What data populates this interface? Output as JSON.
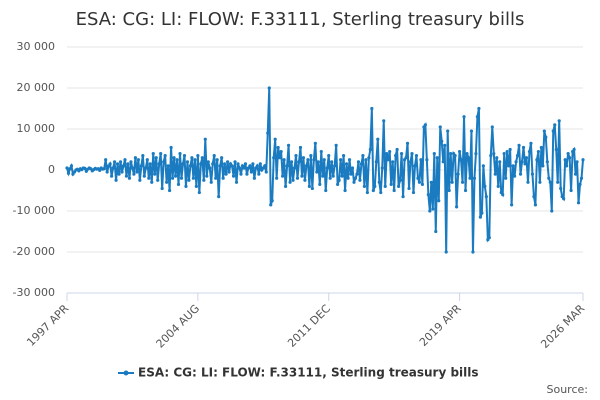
{
  "chart_data": {
    "type": "line",
    "title": "ESA: CG: LI: FLOW: F.33111, Sterling treasury bills",
    "source": "Source:",
    "categories": [
      "1997 APR",
      null,
      null,
      null,
      null,
      null,
      null,
      null,
      null,
      null,
      null,
      null,
      null,
      null,
      null,
      null,
      null,
      null,
      null,
      null,
      null,
      null,
      null,
      null,
      null,
      null,
      null,
      null,
      null,
      null,
      null,
      null,
      null,
      null,
      null,
      null,
      null,
      null,
      null,
      null,
      null,
      null,
      null,
      null,
      null,
      null,
      null,
      null,
      null,
      null,
      null,
      null,
      null,
      null,
      null,
      null,
      null,
      null,
      null,
      null,
      null,
      null,
      null,
      null,
      null,
      null,
      null,
      null,
      null,
      null,
      null,
      null,
      null,
      null,
      null,
      null,
      null,
      null,
      null,
      null,
      null,
      null,
      null,
      null,
      null,
      null,
      null,
      null,
      "2004 AUG",
      null,
      null,
      null,
      null,
      null,
      null,
      null,
      null,
      null,
      null,
      null,
      null,
      null,
      null,
      null,
      null,
      null,
      null,
      null,
      null,
      null,
      null,
      null,
      null,
      null,
      null,
      null,
      null,
      null,
      null,
      null,
      null,
      null,
      null,
      null,
      null,
      null,
      null,
      null,
      null,
      null,
      null,
      null,
      null,
      null,
      null,
      null,
      null,
      null,
      null,
      null,
      null,
      null,
      null,
      null,
      null,
      null,
      null,
      null,
      null,
      null,
      null,
      null,
      null,
      null,
      null,
      null,
      null,
      null,
      null,
      null,
      null,
      null,
      null,
      null,
      null,
      null,
      null,
      null,
      null,
      null,
      null,
      null,
      null,
      null,
      null,
      null,
      "2011 DEC",
      null,
      null,
      null,
      null,
      null,
      null,
      null,
      null,
      null,
      null,
      null,
      null,
      null,
      null,
      null,
      null,
      null,
      null,
      null,
      null,
      null,
      null,
      null,
      null,
      null,
      null,
      null,
      null,
      null,
      null,
      null,
      null,
      null,
      null,
      null,
      null,
      null,
      null,
      null,
      null,
      null,
      null,
      null,
      null,
      null,
      null,
      null,
      null,
      null,
      null,
      null,
      null,
      null,
      null,
      null,
      null,
      null,
      null,
      null,
      null,
      null,
      null,
      null,
      null,
      null,
      null,
      null,
      null,
      null,
      null,
      null,
      null,
      null,
      null,
      null,
      null,
      null,
      null,
      null,
      null,
      null,
      null,
      null,
      null,
      null,
      null,
      null,
      "2019 APR",
      null,
      null,
      null,
      null,
      null,
      null,
      null,
      null,
      null,
      null,
      null,
      null,
      null,
      null,
      null,
      null,
      null,
      null,
      null,
      null,
      null,
      null,
      null,
      null,
      null,
      null,
      null,
      null,
      null,
      null,
      null,
      null,
      null,
      null,
      null,
      null,
      null,
      null,
      null,
      null,
      null,
      null,
      null,
      null,
      null,
      null,
      null,
      null,
      null,
      null,
      null,
      null,
      null,
      null,
      null,
      null,
      null,
      null,
      null,
      null,
      null,
      null,
      null,
      null,
      null,
      null,
      null,
      null,
      null,
      null,
      null,
      null,
      null,
      null,
      null,
      null,
      null,
      null,
      null,
      null,
      null,
      null,
      "2026 MAR"
    ],
    "series": [
      {
        "name": "ESA: CG: LI: FLOW: F.33111, Sterling treasury bills",
        "color": "#1a7bc0",
        "values": [
          500,
          -800,
          300,
          1000,
          -1000,
          -500,
          0,
          200,
          -200,
          300,
          100,
          500,
          400,
          -300,
          200,
          500,
          300,
          -200,
          100,
          400,
          200,
          300,
          -100,
          500,
          200,
          300,
          2500,
          -500,
          1000,
          1500,
          -1500,
          500,
          2000,
          -2500,
          1500,
          -1000,
          2000,
          -500,
          1000,
          2500,
          -1500,
          1500,
          -2000,
          2000,
          500,
          -1000,
          3000,
          -500,
          2500,
          -2500,
          1000,
          3500,
          -1500,
          500,
          2500,
          -2000,
          1500,
          -3000,
          4000,
          -1000,
          3000,
          -2500,
          1500,
          4000,
          -4500,
          2000,
          3500,
          -3000,
          1000,
          -5000,
          5500,
          -2000,
          3000,
          -1500,
          2500,
          -3500,
          4000,
          -2000,
          1500,
          3500,
          -4000,
          2000,
          -2500,
          1000,
          3000,
          -2000,
          2500,
          -4000,
          3500,
          -5500,
          1500,
          3000,
          -2500,
          7500,
          -1500,
          2000,
          500,
          -3000,
          1500,
          3500,
          -2000,
          2500,
          -6500,
          1000,
          3000,
          -2000,
          1500,
          -1000,
          2000,
          -500,
          1500,
          1000,
          -1500,
          2000,
          -3000,
          1500,
          500,
          -1000,
          1000,
          500,
          1500,
          -1000,
          500,
          1000,
          -500,
          1500,
          -2000,
          500,
          1000,
          -1000,
          1500,
          0,
          500,
          1000,
          -500,
          9000,
          20000,
          -8500,
          -7500,
          3000,
          7500,
          -2000,
          5500,
          3000,
          4500,
          -1500,
          2500,
          -4000,
          1000,
          6000,
          -3000,
          2000,
          -2500,
          500,
          3500,
          -2000,
          2000,
          5500,
          -1500,
          3000,
          -2500,
          1000,
          2500,
          -4000,
          3500,
          -4500,
          2500,
          6500,
          -500,
          2000,
          -3500,
          4500,
          -1500,
          2500,
          -5000,
          500,
          3500,
          -2000,
          2000,
          -1500,
          1000,
          6000,
          -3500,
          -2500,
          2500,
          -1500,
          3500,
          -5000,
          1500,
          -2000,
          2500,
          -1000,
          500,
          -3000,
          -2000,
          -1000,
          2000,
          -2500,
          1500,
          3500,
          -4000,
          2500,
          -5500,
          3000,
          5000,
          15000,
          -5000,
          -4000,
          2000,
          7500,
          -3000,
          -5500,
          500,
          12000,
          -4000,
          4000,
          2500,
          4500,
          -3500,
          2000,
          -5000,
          3500,
          5000,
          -4000,
          -2500,
          4000,
          -6500,
          2500,
          3000,
          6500,
          -4500,
          2000,
          4000,
          -5500,
          1000,
          3500,
          -2000,
          -3000,
          2500,
          -3500,
          10500,
          11000,
          2500,
          -6000,
          -10000,
          -3000,
          -9500,
          4000,
          -15000,
          3000,
          -7500,
          10500,
          7000,
          2000,
          6000,
          -20000,
          9500,
          -5000,
          4000,
          -3000,
          4000,
          3500,
          -9000,
          -1000,
          4500,
          2500,
          -3000,
          13000,
          -5000,
          4000,
          3000,
          -2000,
          9500,
          -20000,
          -2000,
          4000,
          13000,
          15000,
          -11500,
          -10500,
          1000,
          -4000,
          -6500,
          -17000,
          -16500,
          3500,
          10500,
          4000,
          -1000,
          3000,
          -4000,
          2000,
          -5500,
          -6000,
          4000,
          -2000,
          4500,
          1000,
          5000,
          -8500,
          1000,
          -1500,
          2000,
          3500,
          6000,
          -1000,
          2000,
          5500,
          1500,
          3000,
          -3000,
          4500,
          6500,
          -1000,
          -6500,
          -8500,
          2500,
          4500,
          -3000,
          5500,
          1000,
          9500,
          8000,
          2000,
          -2000,
          -3000,
          -10000,
          9500,
          11000,
          5000,
          -3000,
          12000,
          -4500,
          -6500,
          -7000,
          2500,
          1000,
          4000,
          3000,
          -5000,
          4500,
          5000,
          -1000,
          2000,
          -8000,
          -3500,
          -2000,
          2500
        ]
      }
    ],
    "ylim": [
      -30000,
      30000
    ],
    "yticks": [
      {
        "value": -30000,
        "label": "-30 000"
      },
      {
        "value": -20000,
        "label": "-20 000"
      },
      {
        "value": -10000,
        "label": "-10 000"
      },
      0,
      {
        "value": 10000,
        "label": "10 000"
      },
      {
        "value": 20000,
        "label": "20 000"
      },
      {
        "value": 30000,
        "label": "30 000"
      }
    ],
    "grid": true
  }
}
